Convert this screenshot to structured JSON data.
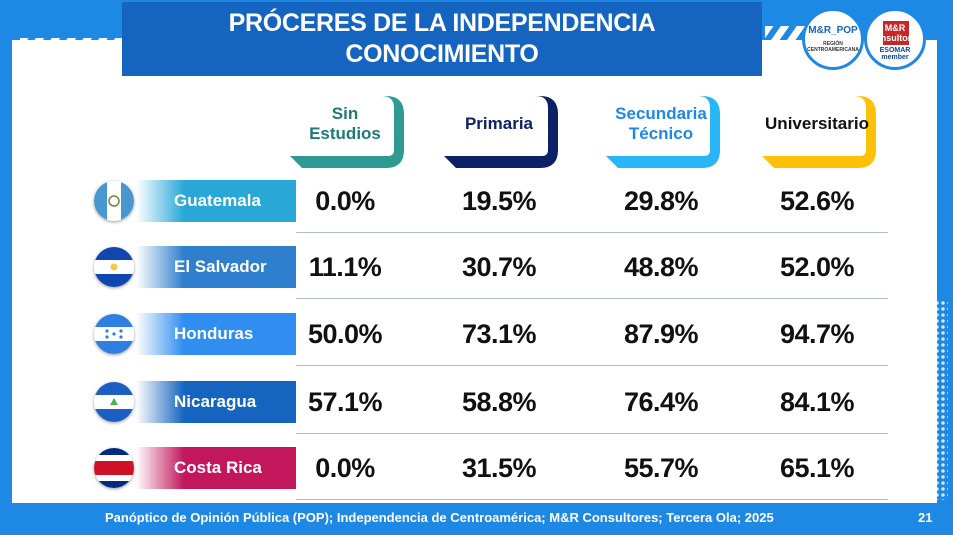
{
  "title": {
    "line1": "PRÓCERES DE LA INDEPENDENCIA",
    "line2": "CONOCIMIENTO"
  },
  "logos": {
    "pop": {
      "name": "M&R_POP",
      "sub": "REGIÓN CENTROAMERICANA"
    },
    "mr": {
      "name": "M&R Consultores",
      "sub": "ESOMAR member"
    }
  },
  "columns": [
    {
      "label": "Sin\nEstudios",
      "color": "#2e9a93",
      "text_color": "#1f7a73"
    },
    {
      "label": "Primaria",
      "color": "#0d2266",
      "text_color": "#0d2266"
    },
    {
      "label": "Secundaria\nTécnico",
      "color": "#29b6f6",
      "text_color": "#1e88e5"
    },
    {
      "label": "Universitario",
      "color": "#ffc107",
      "text_color": "#111111"
    }
  ],
  "rows": [
    {
      "country": "Guatemala",
      "flag_icon": "guatemala-flag-icon",
      "band_color": "#29a8d8",
      "values": [
        "0.0%",
        "19.5%",
        "29.8%",
        "52.6%"
      ]
    },
    {
      "country": "El Salvador",
      "flag_icon": "el-salvador-flag-icon",
      "band_color": "#2f7fcf",
      "values": [
        "11.1%",
        "30.7%",
        "48.8%",
        "52.0%"
      ]
    },
    {
      "country": "Honduras",
      "flag_icon": "honduras-flag-icon",
      "band_color": "#2f8ef0",
      "values": [
        "50.0%",
        "73.1%",
        "87.9%",
        "94.7%"
      ]
    },
    {
      "country": "Nicaragua",
      "flag_icon": "nicaragua-flag-icon",
      "band_color": "#1565c0",
      "values": [
        "57.1%",
        "58.8%",
        "76.4%",
        "84.1%"
      ]
    },
    {
      "country": "Costa Rica",
      "flag_icon": "costa-rica-flag-icon",
      "band_color": "#c2185b",
      "values": [
        "0.0%",
        "31.5%",
        "55.7%",
        "65.1%"
      ]
    }
  ],
  "footer": {
    "source": "Panóptico de Opinión Pública (POP); Independencia de Centroamérica; M&R Consultores; Tercera Ola; 2025",
    "page": "21"
  }
}
